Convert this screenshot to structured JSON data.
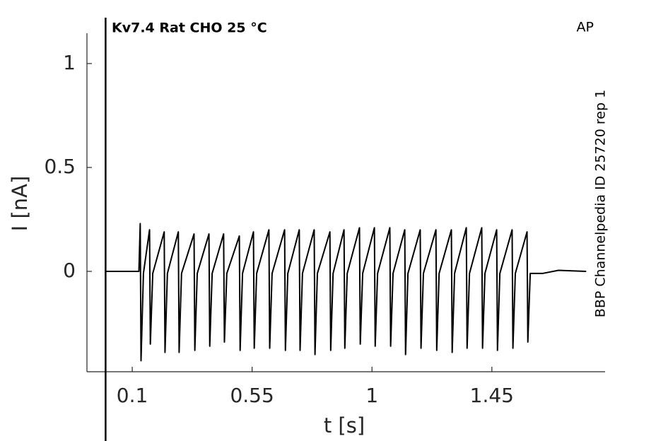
{
  "chart_data": {
    "type": "line",
    "title": "Kv7.4  Rat  CHO  25 °C",
    "corner_label": "AP",
    "side_label": "BBP Channelpedia ID 25720 rep 1",
    "xlabel": "t [s]",
    "ylabel": "I [nA]",
    "color": "#000000",
    "xlim": [
      -0.07,
      1.875
    ],
    "ylim": [
      -0.483,
      1.146
    ],
    "xticks": [
      0.1,
      0.55,
      1,
      1.45
    ],
    "yticks": [
      0,
      0.5,
      1
    ],
    "vline": 0,
    "x": [
      0,
      0.1,
      0.125,
      0.13,
      0.133,
      0.142,
      0.165,
      0.168,
      0.177,
      0.22,
      0.223,
      0.232,
      0.273,
      0.276,
      0.285,
      0.332,
      0.335,
      0.344,
      0.388,
      0.391,
      0.4,
      0.443,
      0.446,
      0.455,
      0.502,
      0.505,
      0.514,
      0.555,
      0.558,
      0.567,
      0.613,
      0.616,
      0.625,
      0.672,
      0.675,
      0.684,
      0.727,
      0.73,
      0.739,
      0.783,
      0.786,
      0.795,
      0.842,
      0.845,
      0.854,
      0.895,
      0.898,
      0.907,
      0.953,
      0.956,
      0.965,
      1.009,
      1.012,
      1.021,
      1.067,
      1.07,
      1.079,
      1.123,
      1.126,
      1.135,
      1.181,
      1.184,
      1.193,
      1.24,
      1.243,
      1.252,
      1.298,
      1.301,
      1.31,
      1.354,
      1.357,
      1.366,
      1.412,
      1.415,
      1.424,
      1.468,
      1.471,
      1.48,
      1.526,
      1.529,
      1.538,
      1.582,
      1.585,
      1.594,
      1.64,
      1.7,
      1.804
    ],
    "values": [
      0,
      0,
      0,
      0.23,
      -0.43,
      -0.01,
      0.2,
      -0.35,
      -0.01,
      0.19,
      -0.39,
      -0.01,
      0.19,
      -0.39,
      -0.01,
      0.18,
      -0.38,
      -0.01,
      0.18,
      -0.36,
      -0.01,
      0.18,
      -0.34,
      -0.01,
      0.17,
      -0.38,
      -0.01,
      0.19,
      -0.37,
      -0.01,
      0.2,
      -0.37,
      -0.01,
      0.2,
      -0.38,
      -0.01,
      0.2,
      -0.38,
      -0.01,
      0.2,
      -0.4,
      -0.01,
      0.19,
      -0.38,
      -0.01,
      0.2,
      -0.37,
      -0.01,
      0.21,
      -0.35,
      -0.01,
      0.21,
      -0.36,
      -0.01,
      0.21,
      -0.36,
      -0.01,
      0.2,
      -0.4,
      -0.01,
      0.2,
      -0.37,
      -0.01,
      0.2,
      -0.38,
      -0.01,
      0.2,
      -0.39,
      -0.01,
      0.21,
      -0.37,
      -0.01,
      0.21,
      -0.37,
      -0.01,
      0.2,
      -0.38,
      -0.01,
      0.2,
      -0.37,
      -0.01,
      0.19,
      -0.34,
      -0.01,
      -0.01,
      0.005,
      0
    ]
  }
}
